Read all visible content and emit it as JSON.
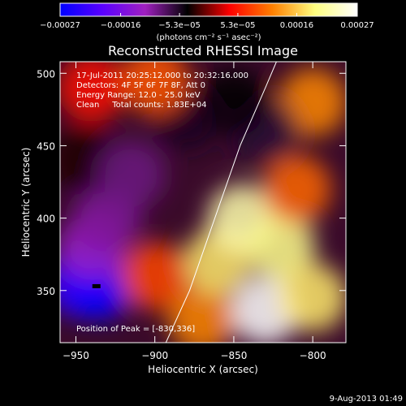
{
  "chart_data": {
    "type": "heatmap",
    "title": "Reconstructed RHESSI Image",
    "xlabel": "Heliocentric X (arcsec)",
    "ylabel": "Heliocentric Y (arcsec)",
    "xlim": [
      -960,
      -779
    ],
    "ylim": [
      314,
      508
    ],
    "xticks": [
      -950,
      -900,
      -850,
      -800
    ],
    "yticks": [
      350,
      400,
      450,
      500
    ],
    "xtick_labels": [
      "−950",
      "−900",
      "−850",
      "−800"
    ],
    "ytick_labels": [
      "350",
      "400",
      "450",
      "500"
    ],
    "colorbar": {
      "min": -0.00027,
      "max": 0.00027,
      "ticks": [
        -0.00027,
        -0.00016,
        -5.3e-05,
        5.3e-05,
        0.00016,
        0.00027
      ],
      "tick_labels": [
        "−0.00027",
        "−0.00016",
        "−5.3e−05",
        "5.3e−05",
        "0.00016",
        "0.00027"
      ],
      "units": "(photons cm⁻² s⁻¹ asec⁻²)",
      "colors": [
        "#0000ff",
        "#5a00ff",
        "#a020c0",
        "#000000",
        "#ff0000",
        "#ff8000",
        "#ffff80",
        "#ffffff"
      ]
    },
    "annotations": [
      "17-Jul-2011 20:25:12.000 to 20:32:16.000",
      "Detectors: 4F 5F 6F 7F 8F, Att 0",
      "Energy Range: 12.0 - 25.0 keV",
      "Clean     Total counts: 1.83E+04"
    ],
    "peak_label": "Position of Peak = [-830,336]",
    "peak": [
      -830,
      336
    ],
    "min_marker": [
      -937,
      353
    ],
    "grid": false,
    "limb_curve": [
      [
        -893,
        314
      ],
      [
        -878,
        350
      ],
      [
        -862,
        400
      ],
      [
        -846,
        450
      ],
      [
        -830,
        490
      ],
      [
        -823,
        508
      ]
    ],
    "field_cells": [
      {
        "x": -948,
        "y": 355,
        "v": -0.00022
      },
      {
        "x": -935,
        "y": 353,
        "v": -0.00026
      },
      {
        "x": -940,
        "y": 380,
        "v": -0.00012
      },
      {
        "x": -930,
        "y": 400,
        "v": -0.0001
      },
      {
        "x": -945,
        "y": 440,
        "v": -3e-05
      },
      {
        "x": -915,
        "y": 430,
        "v": -9e-05
      },
      {
        "x": -900,
        "y": 360,
        "v": 8e-05
      },
      {
        "x": -870,
        "y": 330,
        "v": 0.00012
      },
      {
        "x": -860,
        "y": 370,
        "v": 0.00018
      },
      {
        "x": -845,
        "y": 400,
        "v": 0.00022
      },
      {
        "x": -830,
        "y": 336,
        "v": 0.00027
      },
      {
        "x": -820,
        "y": 380,
        "v": 0.0002
      },
      {
        "x": -800,
        "y": 345,
        "v": 0.00018
      },
      {
        "x": -810,
        "y": 420,
        "v": 0.0001
      },
      {
        "x": -800,
        "y": 480,
        "v": 0.00012
      },
      {
        "x": -830,
        "y": 460,
        "v": -6e-05
      },
      {
        "x": -850,
        "y": 480,
        "v": -4e-05
      },
      {
        "x": -880,
        "y": 470,
        "v": -5e-05
      },
      {
        "x": -940,
        "y": 490,
        "v": 5e-05
      },
      {
        "x": -900,
        "y": 495,
        "v": 9e-05
      }
    ]
  },
  "footer": {
    "date": "9-Aug-2013 01:49"
  }
}
